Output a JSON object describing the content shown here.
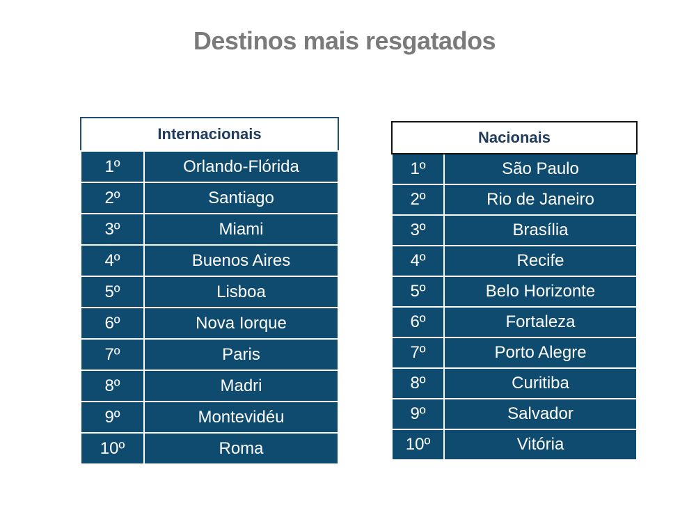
{
  "title": "Destinos mais resgatados",
  "international": {
    "header": "Internacionais",
    "rows": [
      {
        "rank": "1º",
        "city": "Orlando-Flórida"
      },
      {
        "rank": "2º",
        "city": "Santiago"
      },
      {
        "rank": "3º",
        "city": "Miami"
      },
      {
        "rank": "4º",
        "city": "Buenos Aires"
      },
      {
        "rank": "5º",
        "city": "Lisboa"
      },
      {
        "rank": "6º",
        "city": "Nova Iorque"
      },
      {
        "rank": "7º",
        "city": "Paris"
      },
      {
        "rank": "8º",
        "city": "Madri"
      },
      {
        "rank": "9º",
        "city": "Montevidéu"
      },
      {
        "rank": "10º",
        "city": "Roma"
      }
    ]
  },
  "national": {
    "header": "Nacionais",
    "rows": [
      {
        "rank": "1º",
        "city": "São Paulo"
      },
      {
        "rank": "2º",
        "city": "Rio de Janeiro"
      },
      {
        "rank": "3º",
        "city": "Brasília"
      },
      {
        "rank": "4º",
        "city": "Recife"
      },
      {
        "rank": "5º",
        "city": "Belo Horizonte"
      },
      {
        "rank": "6º",
        "city": "Fortaleza"
      },
      {
        "rank": "7º",
        "city": "Porto Alegre"
      },
      {
        "rank": "8º",
        "city": "Curitiba"
      },
      {
        "rank": "9º",
        "city": "Salvador"
      },
      {
        "rank": "10º",
        "city": "Vitória"
      }
    ]
  },
  "colors": {
    "cell_background": "#0f4b6e",
    "header_text": "#1f3a5a",
    "title_text": "#7a7a7a"
  }
}
